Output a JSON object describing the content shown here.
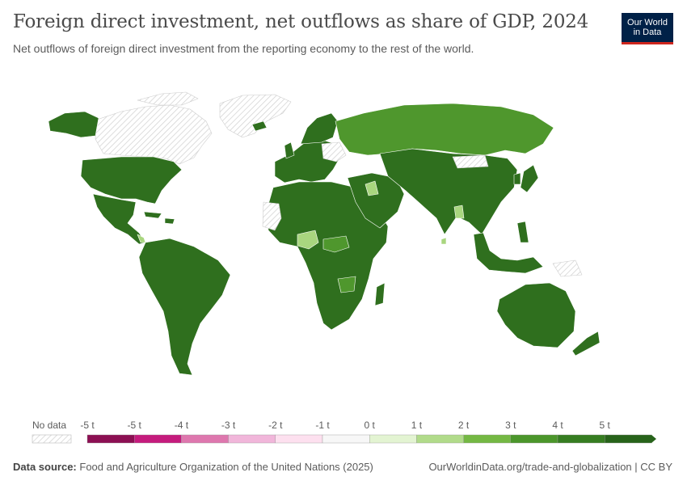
{
  "header": {
    "title": "Foreign direct investment, net outflows as share of GDP, 2024",
    "subtitle": "Net outflows of foreign direct investment from the reporting economy to the rest of the world."
  },
  "logo": {
    "line1": "Our World",
    "line2": "in Data"
  },
  "legend": {
    "no_data_label": "No data",
    "tick_labels": [
      "-5 t",
      "-5 t",
      "-4 t",
      "-3 t",
      "-2 t",
      "-1 t",
      "0 t",
      "1 t",
      "2 t",
      "3 t",
      "4 t",
      "5 t"
    ],
    "bin_colors": [
      "#8c0f53",
      "#c51b7d",
      "#de77ae",
      "#f1b6da",
      "#fde0ef",
      "#f7f7f7",
      "#e3f4d2",
      "#b1db8a",
      "#74b843",
      "#4b962b",
      "#367d21",
      "#27631a"
    ]
  },
  "colors": {
    "dark_green": "#2f6f1e",
    "mid_green": "#4f972d",
    "light_green": "#a9d67f",
    "no_data_stripe": "#cfcfcf"
  },
  "footer": {
    "source_label": "Data source:",
    "source_text": "Food and Agriculture Organization of the United Nations (2025)",
    "right_text": "OurWorldinData.org/trade-and-globalization | CC BY"
  }
}
